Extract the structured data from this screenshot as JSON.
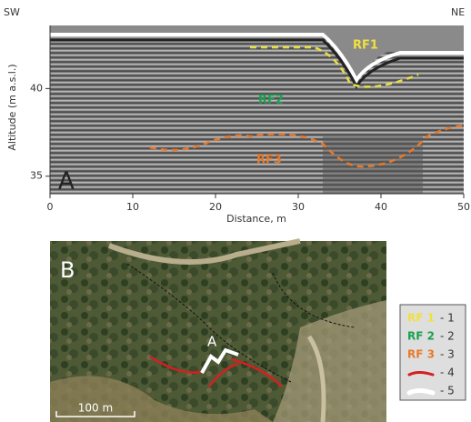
{
  "panel_a": {
    "letter": "A",
    "left_label": "SW",
    "right_label": "NE",
    "x_label": "Distance, m",
    "y_label": "Altitude (m a.s.l.)",
    "xlim": [
      0,
      50
    ],
    "ylim": [
      34,
      43.6
    ],
    "xticks": [
      0,
      10,
      20,
      30,
      40,
      50
    ],
    "yticks": [
      35,
      40
    ],
    "reflectors": [
      "RF1",
      "RF2",
      "RF3"
    ]
  },
  "panel_b": {
    "letter": "B",
    "profile_label": "A",
    "scale_bar": "100 m"
  },
  "legend": [
    {
      "label": "RF 1",
      "key": "- 1"
    },
    {
      "label": "RF 2",
      "key": "- 2"
    },
    {
      "label": "RF 3",
      "key": "- 3"
    },
    {
      "key": "- 4"
    },
    {
      "key": "- 5"
    }
  ]
}
